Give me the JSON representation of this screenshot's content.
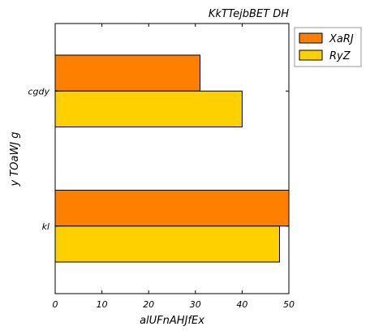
{
  "chart_data": {
    "type": "bar",
    "orientation": "horizontal",
    "title": "KkTTejbBET DH",
    "xlabel": "alUFnAHJfEx",
    "ylabel": "y TOaWJ g",
    "categories": [
      "cgdy",
      "kl"
    ],
    "series": [
      {
        "name": "XaRJ",
        "color": "#ff7f00",
        "values": [
          31,
          50
        ]
      },
      {
        "name": "RyZ",
        "color": "#ffd000",
        "values": [
          40,
          48
        ]
      }
    ],
    "xlim": [
      0,
      50
    ],
    "xticks": [
      0,
      10,
      20,
      30,
      40,
      50
    ],
    "grid": false,
    "legend_position": "outside-top-right"
  }
}
